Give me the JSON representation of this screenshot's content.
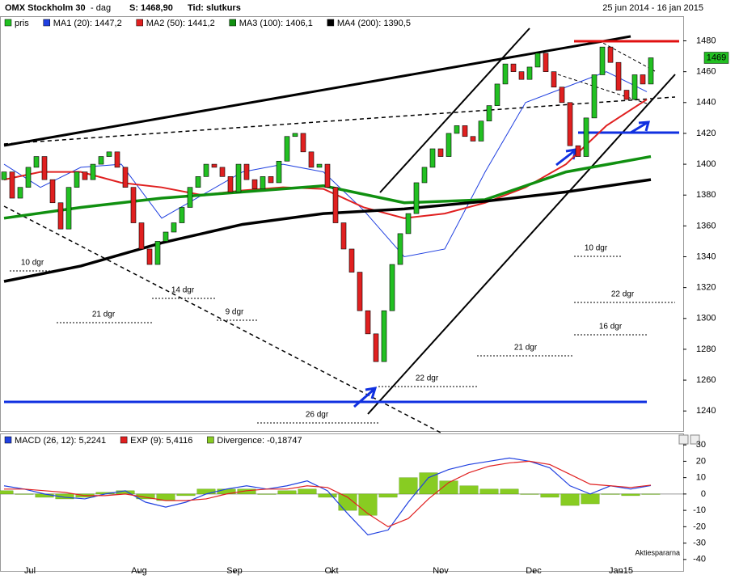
{
  "chart_data": [
    {
      "type": "candlestick",
      "title": "OMX Stockholm 30",
      "subtitle": "- dag",
      "info": [
        "S: 1468,90",
        "Tid: slutkurs"
      ],
      "date_range": "25 jun 2014 - 16 jan 2015",
      "candle_name": "pris",
      "up_color": "#22c022",
      "down_color": "#e02020",
      "x": [
        0,
        1,
        2,
        3,
        4,
        5,
        6,
        7,
        8,
        9,
        10,
        11,
        12,
        13,
        14,
        15,
        16,
        17,
        18,
        19,
        20,
        21,
        22,
        23,
        24,
        25,
        26,
        27,
        28,
        29,
        30,
        31,
        32,
        33,
        34,
        35,
        36,
        37,
        38,
        39,
        40,
        41,
        42,
        43,
        44,
        45,
        46,
        47,
        48,
        49,
        50,
        51,
        52,
        53,
        54,
        55,
        56,
        57,
        58,
        59,
        60,
        61,
        62,
        63,
        64,
        65,
        66,
        67,
        68,
        69,
        70,
        71,
        72,
        73,
        74,
        75,
        76,
        77,
        78,
        79,
        80
      ],
      "open": [
        1390,
        1395,
        1378,
        1385,
        1398,
        1405,
        1390,
        1375,
        1358,
        1385,
        1395,
        1390,
        1400,
        1405,
        1408,
        1398,
        1385,
        1362,
        1345,
        1335,
        1350,
        1356,
        1362,
        1372,
        1385,
        1392,
        1400,
        1398,
        1392,
        1382,
        1400,
        1390,
        1384,
        1392,
        1388,
        1402,
        1418,
        1420,
        1408,
        1398,
        1400,
        1385,
        1362,
        1345,
        1330,
        1305,
        1290,
        1272,
        1305,
        1335,
        1355,
        1368,
        1388,
        1398,
        1410,
        1405,
        1420,
        1425,
        1418,
        1415,
        1428,
        1438,
        1452,
        1465,
        1460,
        1455,
        1463,
        1472,
        1460,
        1450,
        1440,
        1412,
        1405,
        1430,
        1458,
        1476,
        1466,
        1448,
        1442,
        1458,
        1452
      ],
      "close": [
        1395,
        1378,
        1385,
        1398,
        1405,
        1390,
        1375,
        1358,
        1385,
        1395,
        1390,
        1400,
        1405,
        1408,
        1398,
        1385,
        1362,
        1345,
        1335,
        1350,
        1356,
        1362,
        1372,
        1385,
        1392,
        1400,
        1398,
        1392,
        1382,
        1400,
        1390,
        1384,
        1392,
        1388,
        1402,
        1418,
        1420,
        1408,
        1398,
        1400,
        1385,
        1362,
        1345,
        1330,
        1305,
        1290,
        1272,
        1305,
        1335,
        1355,
        1368,
        1388,
        1398,
        1410,
        1405,
        1420,
        1425,
        1418,
        1415,
        1428,
        1438,
        1452,
        1465,
        1460,
        1455,
        1463,
        1472,
        1460,
        1450,
        1440,
        1412,
        1405,
        1430,
        1458,
        1476,
        1466,
        1448,
        1442,
        1458,
        1452,
        1469
      ],
      "price_tag": "1469",
      "series": [
        {
          "name": "MA1 (20): 1447,2",
          "color": "#2040e0",
          "width": 1,
          "x": [
            0,
            4.5,
            9.5,
            14.5,
            19.5,
            24.5,
            29.5,
            34.5,
            39.5,
            44.5,
            49.5,
            54.5,
            59.5,
            64.5,
            69.5,
            74.5,
            79.5
          ],
          "values": [
            1400,
            1385,
            1398,
            1400,
            1365,
            1380,
            1395,
            1400,
            1395,
            1370,
            1340,
            1345,
            1395,
            1440,
            1450,
            1460,
            1447
          ]
        },
        {
          "name": "MA2 (50): 1441,2",
          "color": "#e02020",
          "width": 2,
          "x": [
            0,
            4.5,
            9.5,
            14.5,
            19.5,
            24.5,
            29.5,
            34.5,
            39.5,
            44.5,
            49.5,
            54.5,
            59.5,
            64.5,
            69.5,
            74.5,
            79.5
          ],
          "values": [
            1390,
            1395,
            1395,
            1388,
            1385,
            1380,
            1383,
            1385,
            1384,
            1372,
            1365,
            1368,
            1375,
            1385,
            1400,
            1425,
            1442
          ]
        },
        {
          "name": "MA3 (100): 1406,1",
          "color": "#109010",
          "width": 3.5,
          "x": [
            0,
            9.5,
            19.5,
            29.5,
            39.5,
            49.5,
            59.5,
            69.5,
            80
          ],
          "values": [
            1365,
            1372,
            1378,
            1382,
            1386,
            1375,
            1377,
            1395,
            1405
          ]
        },
        {
          "name": "MA4 (200): 1390,5",
          "color": "#000000",
          "width": 3.5,
          "x": [
            0,
            9.5,
            19.5,
            29.5,
            39.5,
            49.5,
            59.5,
            69.5,
            80
          ],
          "values": [
            1324,
            1334,
            1349,
            1361,
            1368,
            1371,
            1376,
            1382,
            1390
          ]
        }
      ],
      "annotations": [
        "10 dgr",
        "21 dgr",
        "14 dgr",
        "9 dgr",
        "26 dgr",
        "22 dgr",
        "21 dgr",
        "10 dgr",
        "22 dgr",
        "16 dgr"
      ],
      "xlim": [
        -0.5,
        84
      ],
      "ylim": [
        1227,
        1496
      ],
      "yticks": [
        1240,
        1260,
        1280,
        1300,
        1320,
        1340,
        1360,
        1380,
        1400,
        1420,
        1440,
        1460,
        1480
      ]
    },
    {
      "type": "line",
      "x": [
        0,
        2.5,
        5,
        7.5,
        10,
        12.5,
        15,
        17.5,
        20,
        22.5,
        25,
        27.5,
        30,
        32.5,
        35,
        37.5,
        40,
        42.5,
        45,
        47.5,
        50,
        52.5,
        55,
        57.5,
        60,
        62.5,
        65,
        67.5,
        70,
        72.5,
        75,
        77.5,
        80
      ],
      "series": [
        {
          "name": "MACD (26, 12): 5,2241",
          "color": "#2040e0",
          "values": [
            5,
            3,
            0,
            -2,
            -3,
            0,
            2,
            -5,
            -8,
            -5,
            0,
            3,
            5,
            3,
            5,
            8,
            2,
            -12,
            -25,
            -22,
            -5,
            10,
            15,
            18,
            20,
            22,
            20,
            16,
            5,
            0,
            5,
            3,
            5.2
          ]
        },
        {
          "name": "EXP (9): 5,4116",
          "color": "#e02020",
          "values": [
            3,
            3,
            2,
            1,
            -1,
            -1,
            0,
            -2,
            -4,
            -4,
            -3,
            0,
            2,
            3,
            3,
            5,
            4,
            -2,
            -12,
            -20,
            -15,
            -3,
            7,
            13,
            17,
            19,
            20,
            18,
            12,
            6,
            5,
            4,
            5.4
          ]
        }
      ],
      "bars": {
        "name": "Divergence: -0,18747",
        "color": "#88cc22",
        "values": [
          2,
          0,
          -2,
          -3,
          -2,
          1,
          2,
          -3,
          -4,
          -1,
          3,
          3,
          3,
          0,
          2,
          3,
          -2,
          -10,
          -13,
          -2,
          10,
          13,
          8,
          5,
          3,
          3,
          0,
          -2,
          -7,
          -6,
          0,
          -1,
          -0.2
        ]
      },
      "credit": "Aktiespararna",
      "xlim": [
        -0.5,
        84
      ],
      "ylim": [
        -47,
        37
      ],
      "yticks": [
        -40,
        -30,
        -20,
        -10,
        0,
        10,
        20,
        30
      ],
      "xticks": [
        {
          "value": 3.2,
          "label": "Jul"
        },
        {
          "value": 16.7,
          "label": "Aug"
        },
        {
          "value": 28.5,
          "label": "Sep"
        },
        {
          "value": 40.5,
          "label": "Okt"
        },
        {
          "value": 54,
          "label": "Nov"
        },
        {
          "value": 65.5,
          "label": "Dec"
        },
        {
          "value": 76.3,
          "label": "Jan15"
        }
      ]
    }
  ]
}
